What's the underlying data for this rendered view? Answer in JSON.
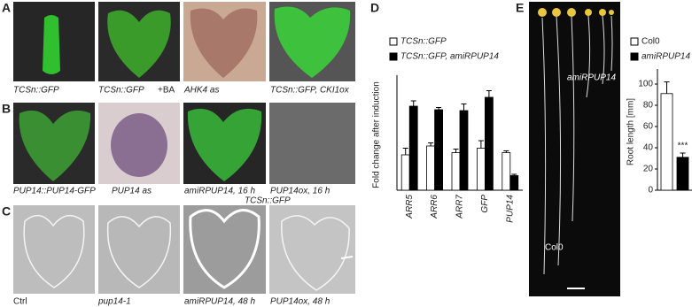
{
  "panel_labels": [
    "A",
    "B",
    "C",
    "D",
    "E"
  ],
  "captions_a": [
    "TCSn::GFP",
    "TCSn::GFP",
    "+BA",
    "AHK4 as",
    "TCSn::GFP, CKI1ox"
  ],
  "captions_b": [
    "PUP14::PUP14-GFP",
    "PUP14 as",
    "amiRPUP14, 16 h",
    "PUP14ox, 16 h"
  ],
  "caption_b_sub": "TCSn::GFP",
  "captions_c": [
    "Ctrl",
    "pup14-1",
    "amiRPUP14, 48 h",
    "PUP14ox, 48 h"
  ],
  "photo_labels": [
    "amiRPUP14",
    "Col0"
  ],
  "chart_data": [
    {
      "type": "bar",
      "y_label": "Fold change after induction",
      "categories": [
        "ARR5",
        "ARR6",
        "ARR7",
        "GFP",
        "PUP14"
      ],
      "ylim": [
        0,
        2.5
      ],
      "series": [
        {
          "name": "TCSn::GFP",
          "color": "#ffffff",
          "values": [
            0.8,
            1.0,
            0.85,
            0.95,
            0.85
          ],
          "errors": [
            0.15,
            0.07,
            0.08,
            0.17,
            0.04
          ]
        },
        {
          "name": "TCSn::GFP, amiRPUP14",
          "color": "#000000",
          "values": [
            1.9,
            1.82,
            1.8,
            2.1,
            0.33
          ],
          "errors": [
            0.12,
            0.05,
            0.15,
            0.15,
            0.03
          ]
        }
      ]
    },
    {
      "type": "bar",
      "y_label": "Root length [mm]",
      "ylim": [
        0,
        110
      ],
      "yticks": [
        0,
        20,
        40,
        60,
        80,
        100
      ],
      "series": [
        {
          "name": "Col0",
          "color": "#ffffff",
          "values": [
            91
          ],
          "errors": [
            11
          ]
        },
        {
          "name": "amiRPUP14",
          "color": "#000000",
          "values": [
            31
          ],
          "errors": [
            4
          ]
        }
      ],
      "annotation": "***"
    }
  ]
}
